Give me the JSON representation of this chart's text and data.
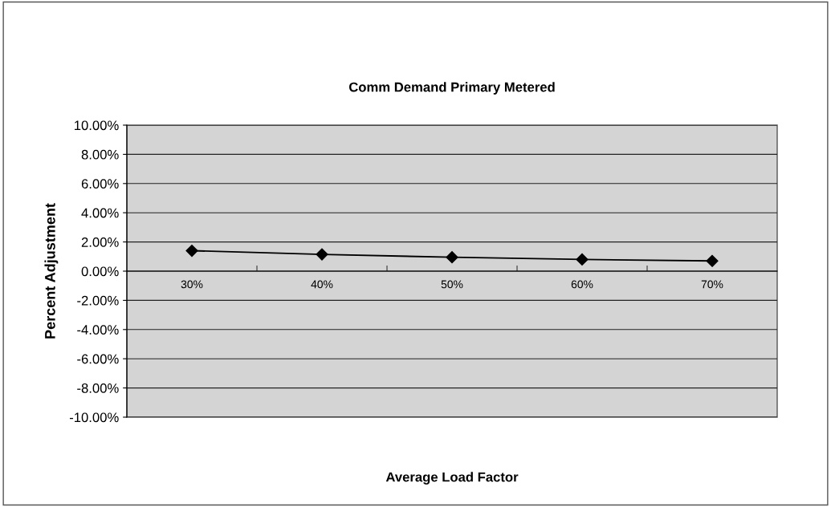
{
  "chart_data": {
    "type": "line",
    "title": "Comm Demand Primary Metered",
    "xlabel": "Average Load Factor",
    "ylabel": "Percent Adjustment",
    "categories": [
      "30%",
      "40%",
      "50%",
      "60%",
      "70%"
    ],
    "series": [
      {
        "color": "#000000",
        "values": [
          1.4,
          1.15,
          0.95,
          0.8,
          0.7
        ]
      }
    ],
    "ylim": [
      -10,
      10
    ],
    "yticks": [
      {
        "value": -10,
        "label": "-10.00%"
      },
      {
        "value": -8,
        "label": "-8.00%"
      },
      {
        "value": -6,
        "label": "-6.00%"
      },
      {
        "value": -4,
        "label": "-4.00%"
      },
      {
        "value": -2,
        "label": "-2.00%"
      },
      {
        "value": 0,
        "label": "0.00%"
      },
      {
        "value": 2,
        "label": "2.00%"
      },
      {
        "value": 4,
        "label": "4.00%"
      },
      {
        "value": 6,
        "label": "6.00%"
      },
      {
        "value": 8,
        "label": "8.00%"
      },
      {
        "value": 10,
        "label": "10.00%"
      }
    ],
    "grid": "y",
    "marker": "diamond",
    "line_style": "solid"
  }
}
